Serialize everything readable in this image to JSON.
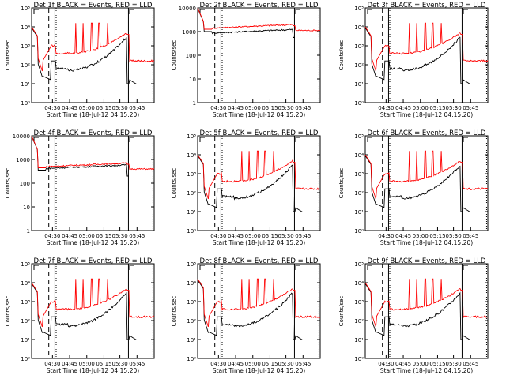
{
  "figure": {
    "x_axis_label": "Start Time (18-Jul-12 04:15:20)",
    "y_axis_label": "Counts/sec"
  },
  "colors": {
    "events": "#000000",
    "lld": "#ff0000",
    "axes": "#000000",
    "background": "#ffffff"
  },
  "chart_data": [
    {
      "type": "line",
      "title": "Det 1f BLACK = Events, RED = LLD",
      "yscale": "log",
      "ylim": [
        1,
        100000
      ],
      "y_ticks": [
        "10⁰",
        "10¹",
        "10²",
        "10³",
        "10⁴",
        "10⁵"
      ],
      "x_ticks": [
        "04:30",
        "04:45",
        "05:00",
        "05:15",
        "05:30",
        "05:45"
      ]
    },
    {
      "type": "line",
      "title": "Det 2f BLACK = Events, RED = LLD",
      "yscale": "log",
      "ylim": [
        1,
        10000
      ],
      "y_ticks": [
        "1",
        "10",
        "100",
        "1000",
        "10000"
      ],
      "x_ticks": [
        "04:30",
        "04:45",
        "05:00",
        "05:15",
        "05:30",
        "05:45"
      ]
    },
    {
      "type": "line",
      "title": "Det 3f BLACK = Events, RED = LLD",
      "yscale": "log",
      "ylim": [
        1,
        100000
      ],
      "y_ticks": [
        "10⁰",
        "10¹",
        "10²",
        "10³",
        "10⁴",
        "10⁵"
      ],
      "x_ticks": [
        "04:30",
        "04:45",
        "05:00",
        "05:15",
        "05:30",
        "05:45"
      ]
    },
    {
      "type": "line",
      "title": "Det 4f BLACK = Events, RED = LLD",
      "yscale": "log",
      "ylim": [
        1,
        10000
      ],
      "y_ticks": [
        "1",
        "10",
        "100",
        "1000",
        "10000"
      ],
      "x_ticks": [
        "04:30",
        "04:45",
        "05:00",
        "05:15",
        "05:30",
        "05:45"
      ]
    },
    {
      "type": "line",
      "title": "Det 5f BLACK = Events, RED = LLD",
      "yscale": "log",
      "ylim": [
        1,
        100000
      ],
      "y_ticks": [
        "10⁰",
        "10¹",
        "10²",
        "10³",
        "10⁴",
        "10⁵"
      ],
      "x_ticks": [
        "04:30",
        "04:45",
        "05:00",
        "05:15",
        "05:30",
        "05:45"
      ]
    },
    {
      "type": "line",
      "title": "Det 6f BLACK = Events, RED = LLD",
      "yscale": "log",
      "ylim": [
        1,
        100000
      ],
      "y_ticks": [
        "10⁰",
        "10¹",
        "10²",
        "10³",
        "10⁴",
        "10⁵"
      ],
      "x_ticks": [
        "04:30",
        "04:45",
        "05:00",
        "05:15",
        "05:30",
        "05:45"
      ]
    },
    {
      "type": "line",
      "title": "Det 7f BLACK = Events, RED = LLD",
      "yscale": "log",
      "ylim": [
        1,
        100000
      ],
      "y_ticks": [
        "10⁰",
        "10¹",
        "10²",
        "10³",
        "10⁴",
        "10⁵"
      ],
      "x_ticks": [
        "04:30",
        "04:45",
        "05:00",
        "05:15",
        "05:30",
        "05:45"
      ]
    },
    {
      "type": "line",
      "title": "Det 8f BLACK = Events, RED = LLD",
      "yscale": "log",
      "ylim": [
        1,
        100000
      ],
      "y_ticks": [
        "10⁰",
        "10¹",
        "10²",
        "10³",
        "10⁴",
        "10⁵"
      ],
      "x_ticks": [
        "04:30",
        "04:45",
        "05:00",
        "05:15",
        "05:30",
        "05:45"
      ]
    },
    {
      "type": "line",
      "title": "Det 9f BLACK = Events, RED = LLD",
      "yscale": "log",
      "ylim": [
        1,
        100000
      ],
      "y_ticks": [
        "10⁰",
        "10¹",
        "10²",
        "10³",
        "10⁴",
        "10⁵"
      ],
      "x_ticks": [
        "04:30",
        "04:45",
        "05:00",
        "05:15",
        "05:30",
        "05:45"
      ]
    }
  ]
}
